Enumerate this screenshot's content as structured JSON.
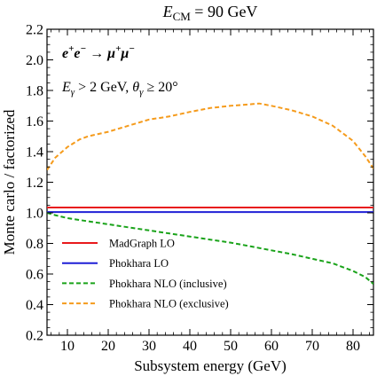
{
  "chart_data": {
    "type": "line",
    "title": {
      "main": "E",
      "sub": "CM",
      "rest": " = 90 GeV"
    },
    "process": {
      "part1": "e",
      "part1_sup": "+",
      "part2": "e",
      "part2_sup": "−",
      "arrow": " → ",
      "part3": "μ",
      "part3_sup": "+",
      "part4": "μ",
      "part4_sup": "−"
    },
    "cuts": {
      "e": "E",
      "e_sub": "γ",
      "e_rest": " > 2 GeV, ",
      "theta": "θ",
      "theta_sub": "γ",
      "theta_rest": " ≥ 20°"
    },
    "xlabel": "Subsystem energy (GeV)",
    "ylabel": "Monte carlo / factorized",
    "xlim": [
      5,
      85
    ],
    "ylim": [
      0.2,
      2.2
    ],
    "xticks": [
      10,
      20,
      30,
      40,
      50,
      60,
      70,
      80
    ],
    "yticks": [
      "0.2",
      "0.4",
      "0.6",
      "0.8",
      "1.0",
      "1.2",
      "1.4",
      "1.6",
      "1.8",
      "2.0",
      "2.2"
    ],
    "legend_position": "lower-left",
    "series": [
      {
        "name": "MadGraph LO",
        "color": "#e8191c",
        "style": "solid",
        "x": [
          5,
          85
        ],
        "y": [
          1.035,
          1.035
        ]
      },
      {
        "name": "Phokhara LO",
        "color": "#1f1fd6",
        "style": "solid",
        "x": [
          5,
          85
        ],
        "y": [
          1.005,
          1.005
        ]
      },
      {
        "name": "Phokhara NLO (inclusive)",
        "color": "#1aa31a",
        "style": "dashed",
        "x": [
          5,
          7,
          10,
          15,
          20,
          25,
          30,
          35,
          40,
          45,
          50,
          55,
          60,
          65,
          70,
          75,
          80,
          83,
          85
        ],
        "y": [
          1.0,
          0.985,
          0.965,
          0.945,
          0.925,
          0.905,
          0.885,
          0.865,
          0.845,
          0.825,
          0.805,
          0.78,
          0.755,
          0.73,
          0.7,
          0.67,
          0.62,
          0.58,
          0.535
        ]
      },
      {
        "name": "Phokhara NLO (exclusive)",
        "color": "#f59b1c",
        "style": "dashed",
        "x": [
          5,
          7,
          10,
          13,
          15,
          20,
          25,
          30,
          35,
          40,
          45,
          50,
          55,
          57,
          60,
          65,
          70,
          75,
          80,
          83,
          85
        ],
        "y": [
          1.28,
          1.36,
          1.43,
          1.48,
          1.5,
          1.53,
          1.57,
          1.61,
          1.63,
          1.66,
          1.685,
          1.7,
          1.71,
          1.715,
          1.7,
          1.67,
          1.63,
          1.57,
          1.47,
          1.37,
          1.29
        ]
      }
    ]
  }
}
